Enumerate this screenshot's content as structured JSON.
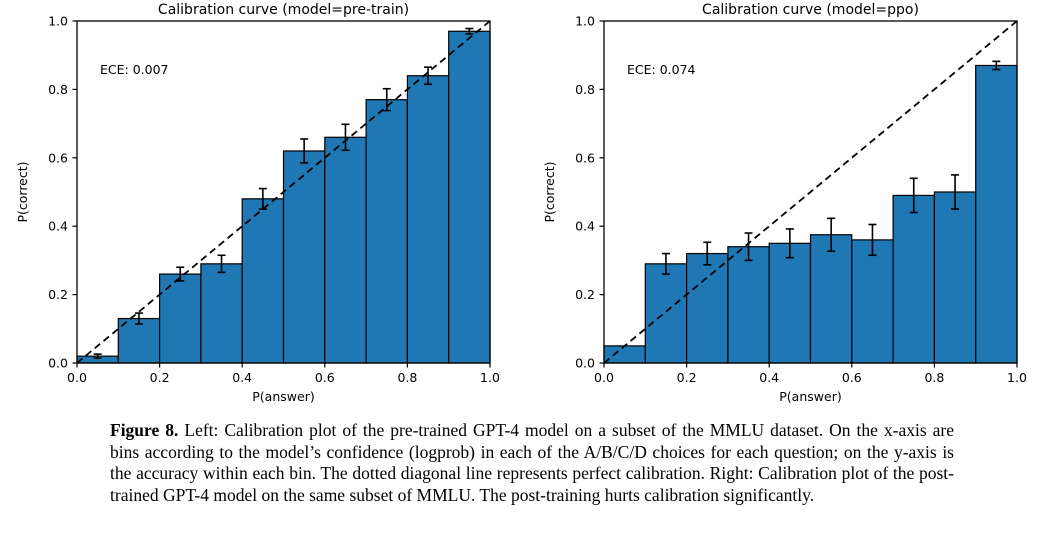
{
  "figure": {
    "caption_label": "Figure 8.",
    "caption_text": "Left: Calibration plot of the pre-trained GPT-4 model on a subset of the MMLU dataset. On the x-axis are bins according to the model’s confidence (logprob) in each of the A/B/C/D choices for each question; on the y-axis is the accuracy within each bin. The dotted diagonal line represents perfect calibration. Right: Calibration plot of the post-trained GPT-4 model on the same subset of MMLU. The post-training hurts calibration significantly."
  },
  "colors": {
    "bar_fill": "#1f77b4",
    "bar_edge": "#000000",
    "diagonal_line": "#000000",
    "error_bar": "#000000",
    "axis": "#000000",
    "text": "#000000",
    "background": "#ffffff"
  },
  "chart_data": [
    {
      "type": "bar",
      "title": "Calibration curve (model=pre-train)",
      "annotation": "ECE: 0.007",
      "xlabel": "P(answer)",
      "ylabel": "P(correct)",
      "xlim": [
        0.0,
        1.0
      ],
      "ylim": [
        0.0,
        1.0
      ],
      "xticks": [
        "0.0",
        "0.2",
        "0.4",
        "0.6",
        "0.8",
        "1.0"
      ],
      "yticks": [
        "0.0",
        "0.2",
        "0.4",
        "0.6",
        "0.8",
        "1.0"
      ],
      "bin_width": 0.1,
      "bin_centers": [
        0.05,
        0.15,
        0.25,
        0.35,
        0.45,
        0.55,
        0.65,
        0.75,
        0.85,
        0.95
      ],
      "values": [
        0.02,
        0.13,
        0.26,
        0.29,
        0.48,
        0.62,
        0.66,
        0.77,
        0.84,
        0.97
      ],
      "errors": [
        0.006,
        0.016,
        0.02,
        0.025,
        0.03,
        0.035,
        0.038,
        0.032,
        0.025,
        0.008
      ],
      "diagonal_line": "dashed y=x (perfect calibration)"
    },
    {
      "type": "bar",
      "title": "Calibration curve (model=ppo)",
      "annotation": "ECE: 0.074",
      "xlabel": "P(answer)",
      "ylabel": "P(correct)",
      "xlim": [
        0.0,
        1.0
      ],
      "ylim": [
        0.0,
        1.0
      ],
      "xticks": [
        "0.0",
        "0.2",
        "0.4",
        "0.6",
        "0.8",
        "1.0"
      ],
      "yticks": [
        "0.0",
        "0.2",
        "0.4",
        "0.6",
        "0.8",
        "1.0"
      ],
      "bin_width": 0.1,
      "bin_centers": [
        0.05,
        0.15,
        0.25,
        0.35,
        0.45,
        0.55,
        0.65,
        0.75,
        0.85,
        0.95
      ],
      "values": [
        0.05,
        0.29,
        0.32,
        0.34,
        0.35,
        0.375,
        0.36,
        0.49,
        0.5,
        0.87
      ],
      "errors": [
        0,
        0.03,
        0.033,
        0.04,
        0.042,
        0.048,
        0.045,
        0.05,
        0.05,
        0.012
      ],
      "diagonal_line": "dashed y=x (perfect calibration)"
    }
  ]
}
